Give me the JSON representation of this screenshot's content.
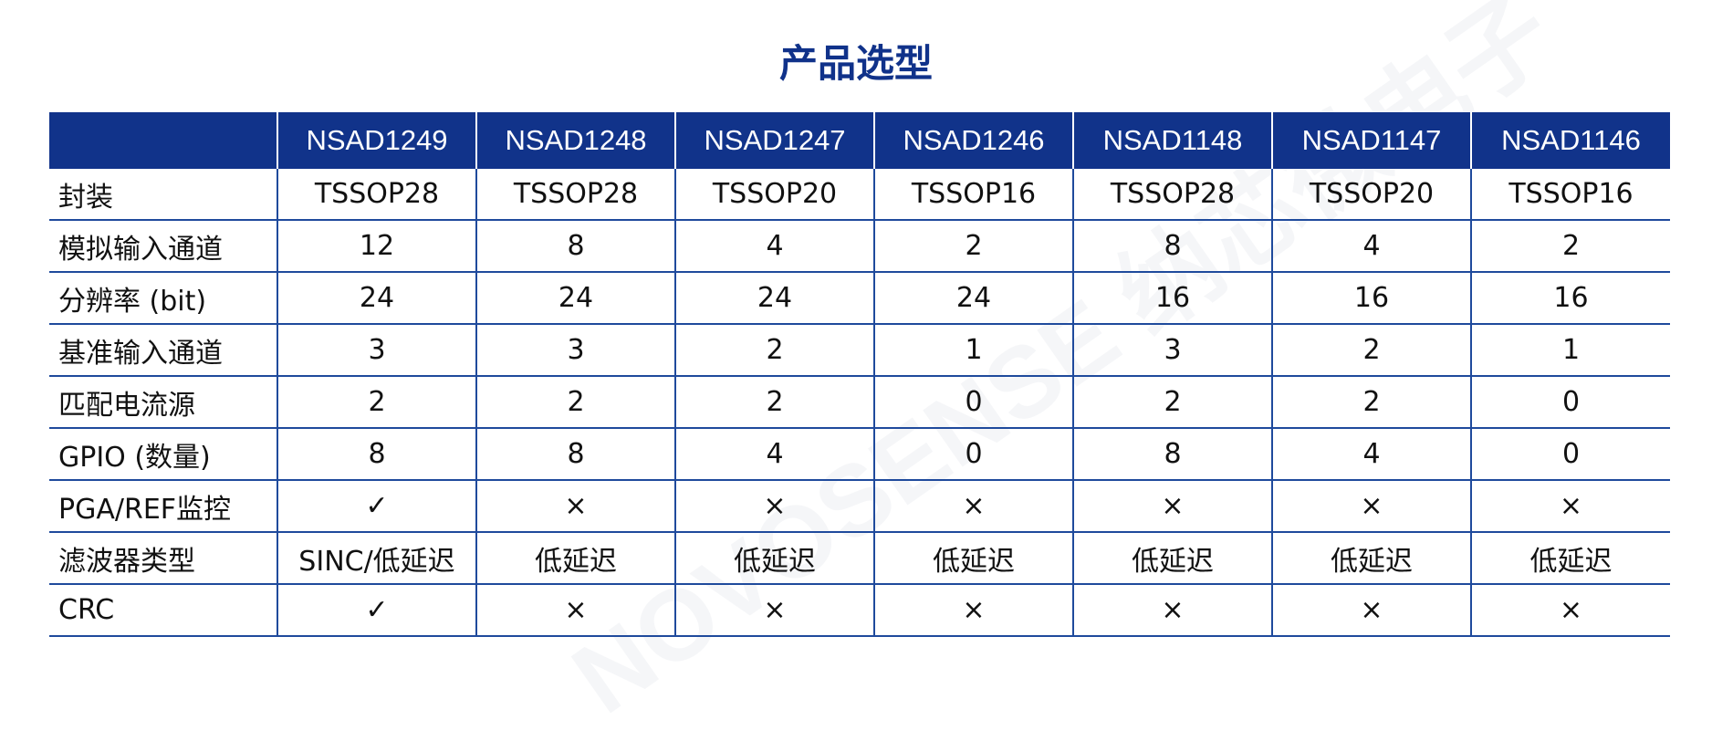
{
  "title": "产品选型",
  "watermark": "NOVOSENSE 纳芯微电子",
  "columns": [
    "",
    "NSAD1249",
    "NSAD1248",
    "NSAD1247",
    "NSAD1246",
    "NSAD1148",
    "NSAD1147",
    "NSAD1146"
  ],
  "rows": [
    {
      "label": "封装",
      "values": [
        "TSSOP28",
        "TSSOP28",
        "TSSOP20",
        "TSSOP16",
        "TSSOP28",
        "TSSOP20",
        "TSSOP16"
      ]
    },
    {
      "label": "模拟输入通道",
      "values": [
        "12",
        "8",
        "4",
        "2",
        "8",
        "4",
        "2"
      ]
    },
    {
      "label": "分辨率 (bit)",
      "values": [
        "24",
        "24",
        "24",
        "24",
        "16",
        "16",
        "16"
      ]
    },
    {
      "label": "基准输入通道",
      "values": [
        "3",
        "3",
        "2",
        "1",
        "3",
        "2",
        "1"
      ]
    },
    {
      "label": "匹配电流源",
      "values": [
        "2",
        "2",
        "2",
        "0",
        "2",
        "2",
        "0"
      ]
    },
    {
      "label": "GPIO (数量)",
      "values": [
        "8",
        "8",
        "4",
        "0",
        "8",
        "4",
        "0"
      ]
    },
    {
      "label": "PGA/REF监控",
      "values": [
        "✓",
        "×",
        "×",
        "×",
        "×",
        "×",
        "×"
      ]
    },
    {
      "label": "滤波器类型",
      "values": [
        "SINC/低延迟",
        "低延迟",
        "低延迟",
        "低延迟",
        "低延迟",
        "低延迟",
        "低延迟"
      ]
    },
    {
      "label": "CRC",
      "values": [
        "✓",
        "×",
        "×",
        "×",
        "×",
        "×",
        "×"
      ]
    }
  ]
}
